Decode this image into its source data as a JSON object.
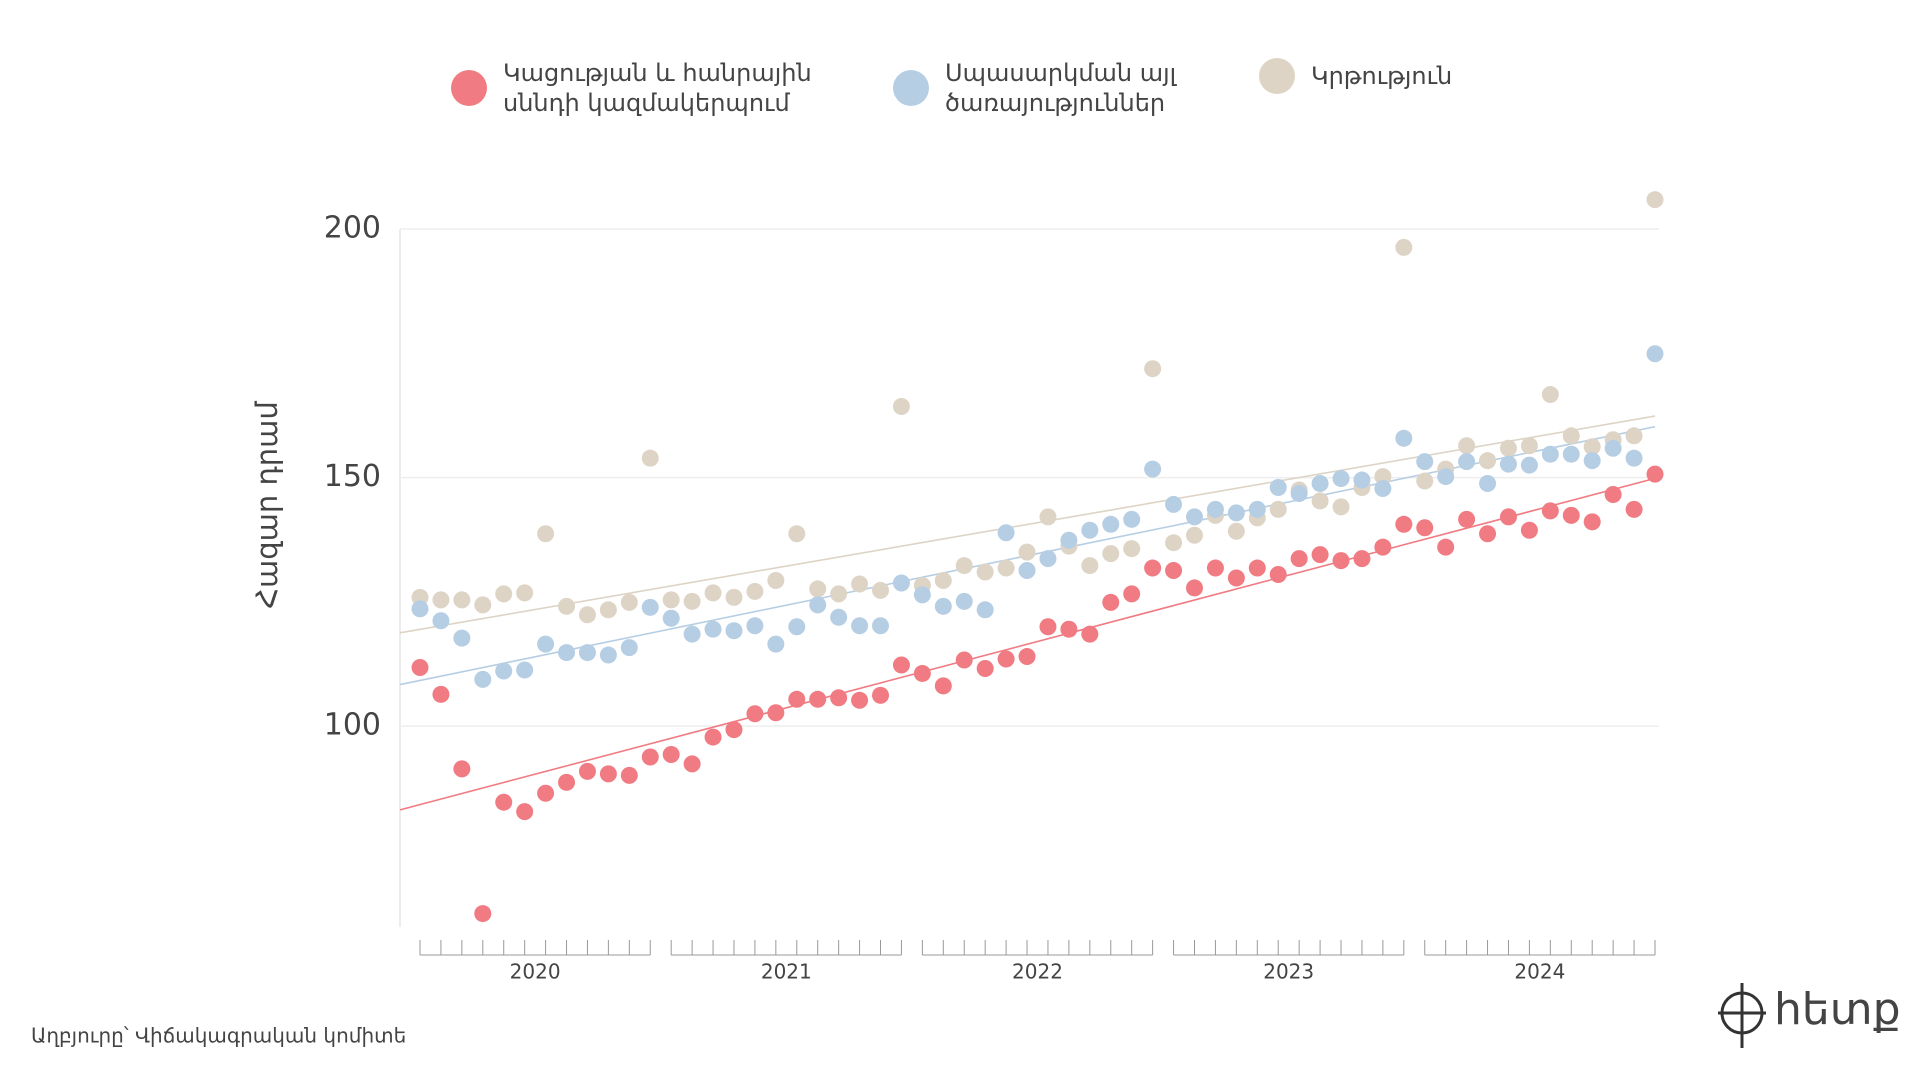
{
  "chart_data": {
    "type": "scatter",
    "y_label": "Հազար դրամ",
    "source": "Աղբյուրը՝ Վիճակագրական կոմիտե",
    "logo": "հետք",
    "years": [
      2020,
      2021,
      2022,
      2023,
      2024
    ],
    "ylim": [
      60,
      200
    ],
    "yticks": [
      100,
      150,
      200
    ],
    "grid": true,
    "trendline": true,
    "series": [
      {
        "name": "Կացության և հանրային\nսննդի կազմակերպում",
        "color": "#f07b82",
        "values": [
          111.8,
          106.4,
          91.4,
          62.3,
          84.7,
          82.8,
          86.5,
          88.7,
          90.9,
          90.4,
          90.1,
          93.8,
          94.3,
          92.4,
          97.8,
          99.3,
          102.5,
          102.7,
          105.4,
          105.4,
          105.7,
          105.2,
          106.2,
          112.3,
          110.6,
          108.1,
          113.3,
          111.6,
          113.5,
          114.0,
          120.0,
          119.5,
          118.5,
          124.9,
          126.6,
          131.8,
          131.3,
          127.8,
          131.8,
          129.8,
          131.8,
          130.5,
          133.7,
          134.5,
          133.3,
          133.7,
          136.0,
          140.6,
          139.9,
          136.0,
          141.6,
          138.7,
          142.1,
          139.4,
          143.3,
          142.4,
          141.1,
          146.6,
          143.6,
          150.7
        ]
      },
      {
        "name": "Սպասարկման այլ\nծառայություններ",
        "color": "#b6cee4",
        "values": [
          123.6,
          121.2,
          117.7,
          109.4,
          111.1,
          111.3,
          116.5,
          114.8,
          114.8,
          114.3,
          115.8,
          123.9,
          121.7,
          118.5,
          119.5,
          119.2,
          120.2,
          116.5,
          120.0,
          124.4,
          121.9,
          120.2,
          120.2,
          128.8,
          126.4,
          124.1,
          125.1,
          123.4,
          138.9,
          131.3,
          133.7,
          137.4,
          139.4,
          140.6,
          141.6,
          151.7,
          144.6,
          142.1,
          143.6,
          142.9,
          143.6,
          148.0,
          146.8,
          148.8,
          149.8,
          149.5,
          147.8,
          157.9,
          153.2,
          150.2,
          153.2,
          148.8,
          152.7,
          152.5,
          154.7,
          154.7,
          153.4,
          155.9,
          153.9,
          174.9
        ]
      },
      {
        "name": "Կրթություն",
        "color": "#ddd4c6",
        "values": [
          125.9,
          125.4,
          125.4,
          124.4,
          126.6,
          126.8,
          138.7,
          124.1,
          122.4,
          123.4,
          124.9,
          153.9,
          125.4,
          125.1,
          126.8,
          125.9,
          127.1,
          129.3,
          138.7,
          127.6,
          126.6,
          128.6,
          127.3,
          164.3,
          128.3,
          129.3,
          132.3,
          131.0,
          131.8,
          135.0,
          142.1,
          136.2,
          132.3,
          134.7,
          135.7,
          171.9,
          136.9,
          138.4,
          142.4,
          139.2,
          141.9,
          143.6,
          147.5,
          145.3,
          144.1,
          148.0,
          150.2,
          196.3,
          149.3,
          151.7,
          156.4,
          153.4,
          155.9,
          156.4,
          166.7,
          158.4,
          156.2,
          157.6,
          158.4,
          205.9
        ]
      }
    ]
  }
}
